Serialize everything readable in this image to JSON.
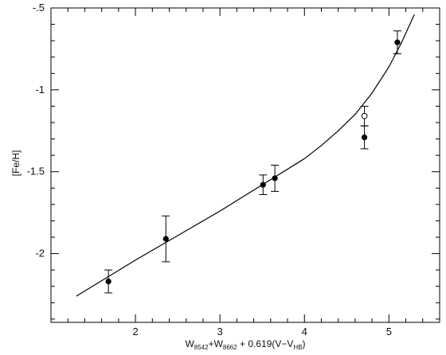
{
  "chart_data": {
    "type": "scatter",
    "title": "",
    "xlabel": {
      "parts": [
        "W",
        "8542",
        "+W",
        "8662",
        " + 0.619(V−V",
        "HB",
        ")"
      ],
      "subscript_flags": [
        false,
        true,
        false,
        true,
        false,
        true,
        false
      ]
    },
    "ylabel": "[Fe/H]",
    "xlim": [
      1.0,
      5.6
    ],
    "ylim": [
      -2.42,
      -0.5
    ],
    "x_ticks": [
      2,
      3,
      4,
      5
    ],
    "x_tick_labels": [
      "2",
      "3",
      "4",
      "5"
    ],
    "y_ticks": [
      -0.5,
      -1,
      -1.5,
      -2
    ],
    "y_tick_labels": [
      "-.5",
      "-1",
      "-1.5",
      "-2"
    ],
    "grid": false,
    "series": [
      {
        "marker": "filled-circle",
        "points": [
          {
            "x": 1.68,
            "y": -2.17,
            "yerr": 0.07
          },
          {
            "x": 2.36,
            "y": -1.91,
            "yerr": 0.14
          },
          {
            "x": 3.51,
            "y": -1.58,
            "yerr": 0.06
          },
          {
            "x": 3.65,
            "y": -1.54,
            "yerr": 0.08
          },
          {
            "x": 4.71,
            "y": -1.29,
            "yerr": 0.07
          },
          {
            "x": 5.1,
            "y": -0.71,
            "yerr": 0.07
          }
        ]
      },
      {
        "marker": "open-circle",
        "points": [
          {
            "x": 4.71,
            "y": -1.16,
            "yerr": 0.06
          }
        ]
      },
      {
        "marker": "line",
        "points": [
          {
            "x": 1.3,
            "y": -2.26
          },
          {
            "x": 2.0,
            "y": -2.04
          },
          {
            "x": 2.5,
            "y": -1.89
          },
          {
            "x": 3.0,
            "y": -1.74
          },
          {
            "x": 3.5,
            "y": -1.58
          },
          {
            "x": 4.0,
            "y": -1.42
          },
          {
            "x": 4.2,
            "y": -1.34
          },
          {
            "x": 4.4,
            "y": -1.25
          },
          {
            "x": 4.6,
            "y": -1.15
          },
          {
            "x": 4.8,
            "y": -1.02
          },
          {
            "x": 5.0,
            "y": -0.86
          },
          {
            "x": 5.15,
            "y": -0.71
          },
          {
            "x": 5.3,
            "y": -0.54
          }
        ]
      }
    ]
  }
}
